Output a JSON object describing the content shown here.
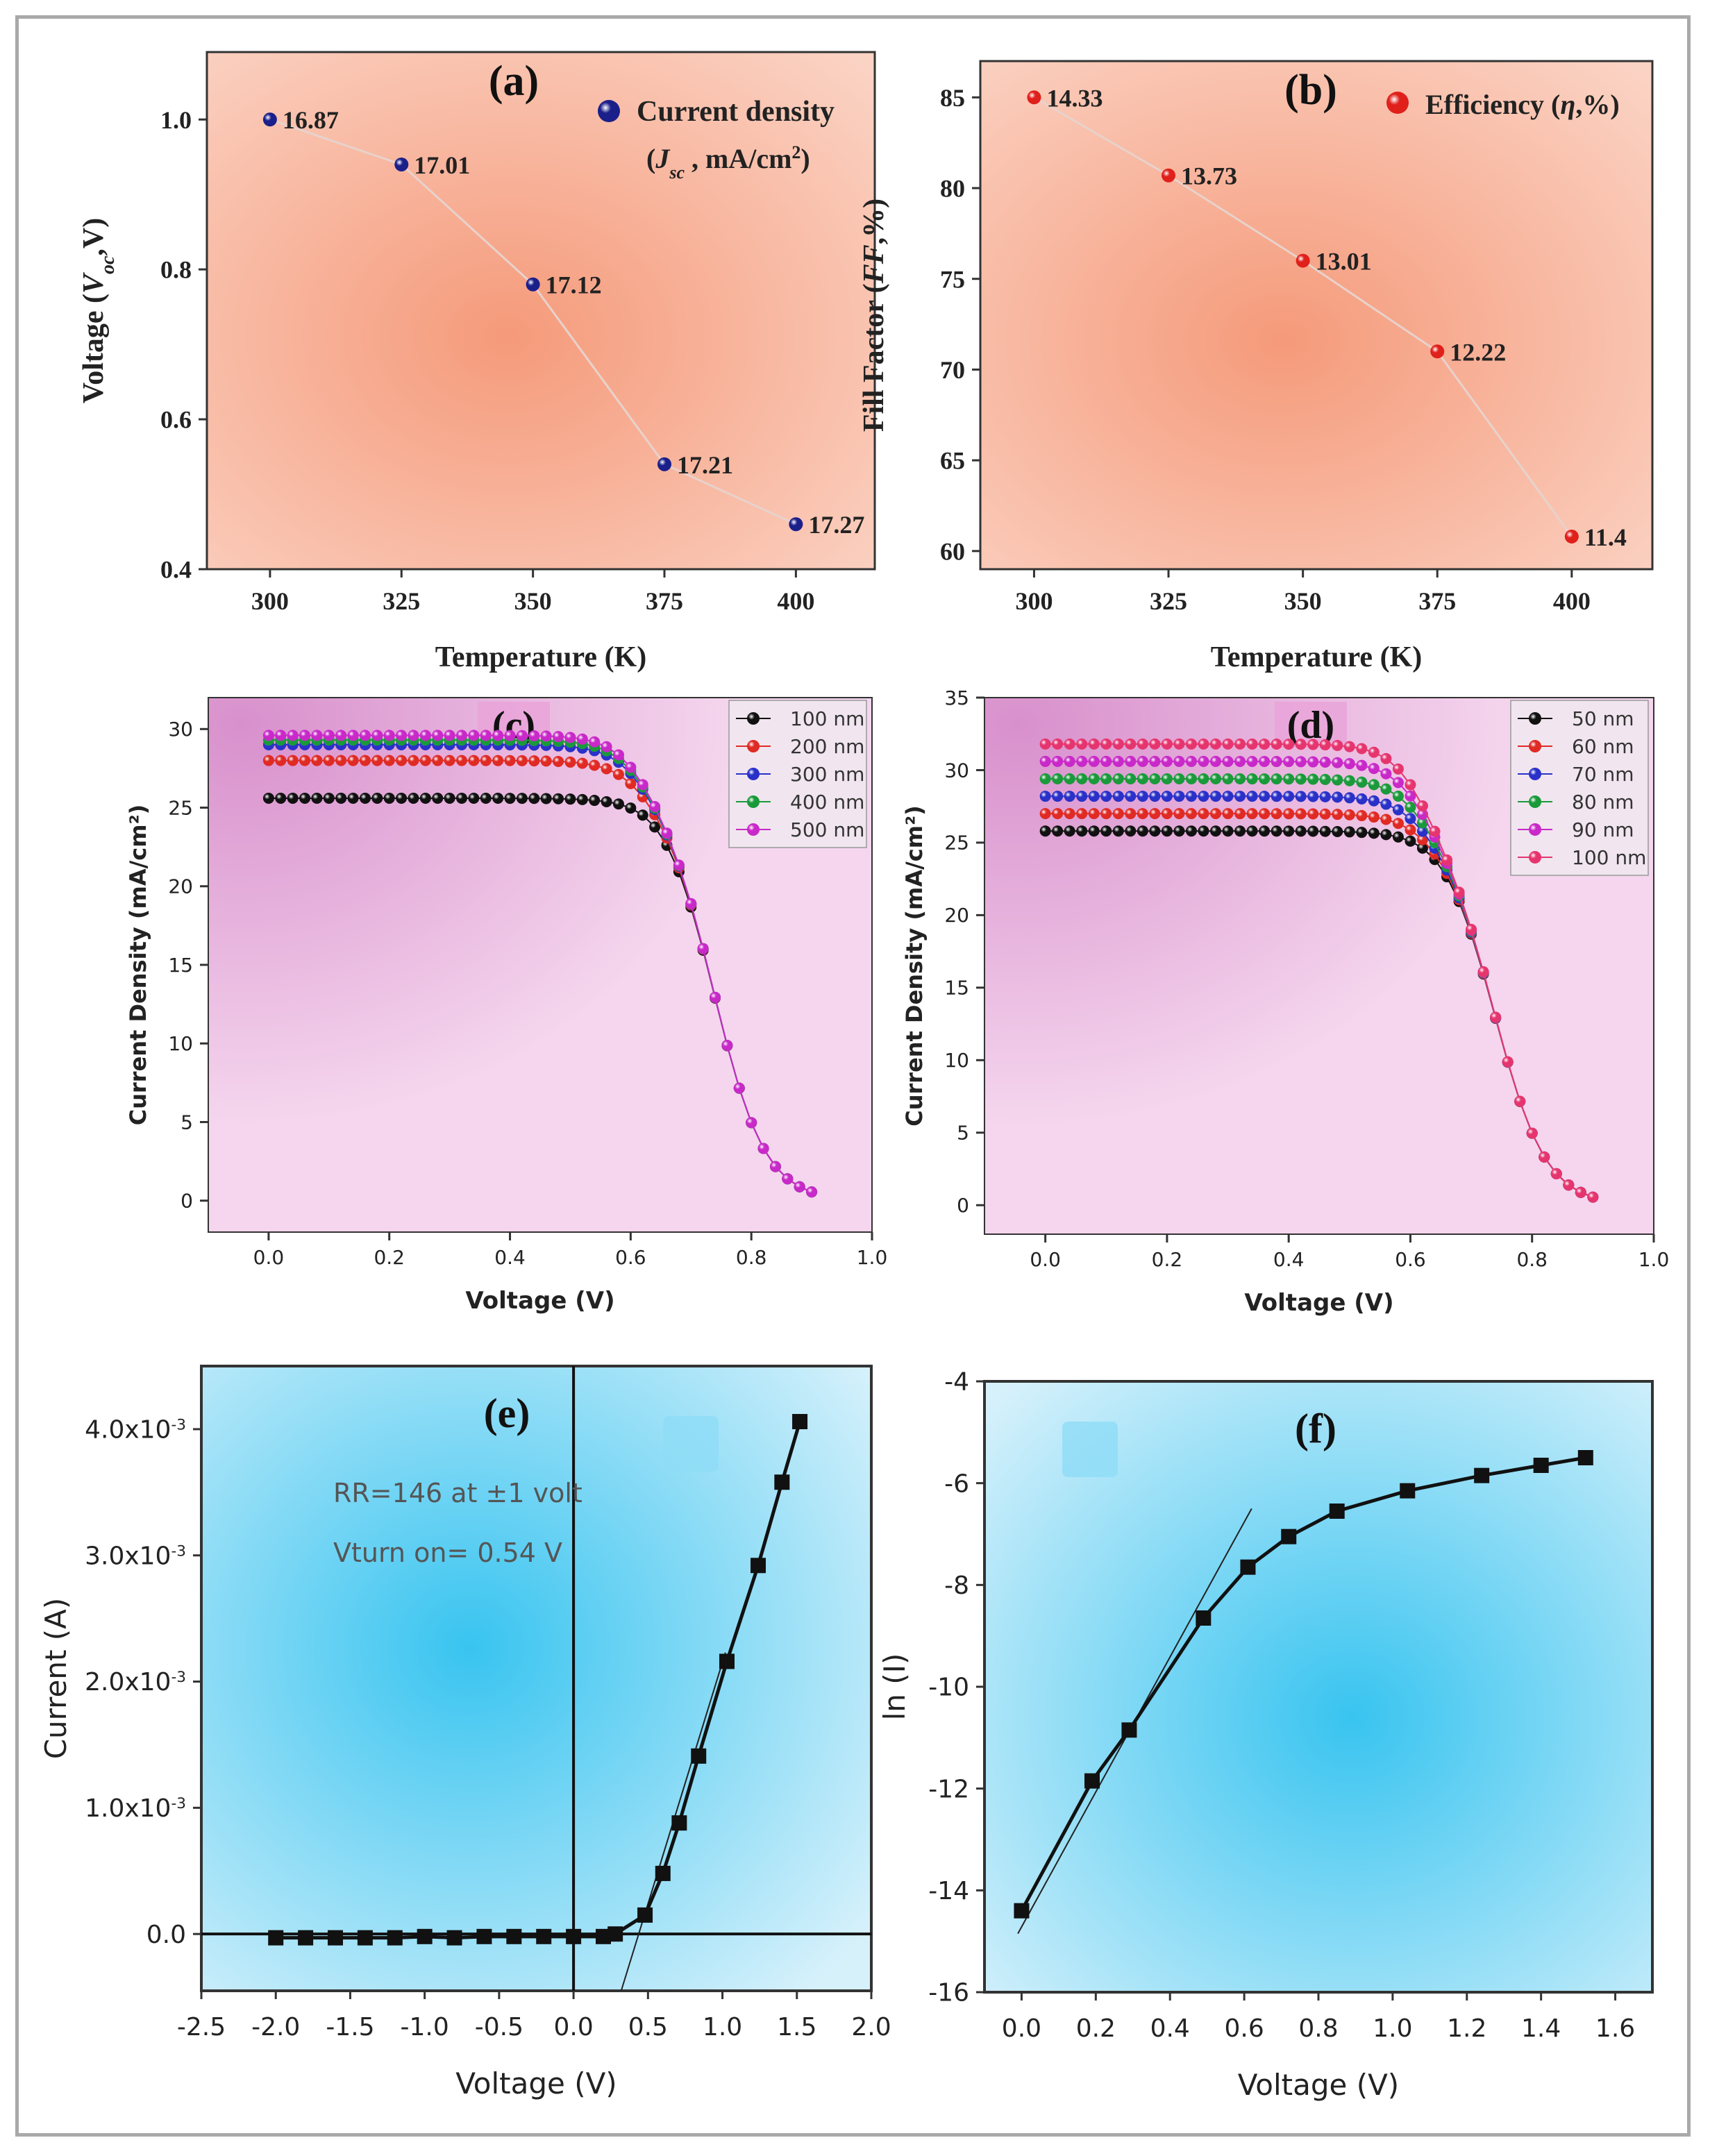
{
  "chart_data": [
    {
      "panel": "(a)",
      "type": "scatter",
      "xlabel": "Temperature (K)",
      "ylabel_parts": [
        "Voltage (",
        "V",
        "oc",
        ",V)"
      ],
      "legend": [
        "Current density",
        "(",
        "J",
        "sc",
        " , mA/cm",
        "2",
        ")"
      ],
      "xlim": [
        288,
        415
      ],
      "ylim": [
        0.4,
        1.09
      ],
      "xticks": [
        300,
        325,
        350,
        375,
        400
      ],
      "yticks": [
        0.4,
        0.6,
        0.8,
        1.0
      ],
      "xtick_labels": [
        "300",
        "325",
        "350",
        "375",
        "400"
      ],
      "ytick_labels": [
        "0.4",
        "0.6",
        "0.8",
        "1.0"
      ],
      "x": [
        300,
        325,
        350,
        375,
        400
      ],
      "y": [
        1.0,
        0.94,
        0.78,
        0.54,
        0.46
      ],
      "point_labels": [
        "16.87",
        "17.01",
        "17.12",
        "17.21",
        "17.27"
      ],
      "marker_color": "#1a1f8a",
      "background": "#f8b9a5"
    },
    {
      "panel": "(b)",
      "type": "scatter",
      "xlabel": "Temperature (K)",
      "ylabel_parts": [
        "Fill Factor (",
        "FF",
        ",%)"
      ],
      "legend": [
        "Efficiency (",
        "η",
        ",%)"
      ],
      "xlim": [
        290,
        415
      ],
      "ylim": [
        59,
        87
      ],
      "xticks": [
        300,
        325,
        350,
        375,
        400
      ],
      "yticks": [
        60,
        65,
        70,
        75,
        80,
        85
      ],
      "xtick_labels": [
        "300",
        "325",
        "350",
        "375",
        "400"
      ],
      "ytick_labels": [
        "60",
        "65",
        "70",
        "75",
        "80",
        "85"
      ],
      "x": [
        300,
        325,
        350,
        375,
        400
      ],
      "y": [
        85,
        80.7,
        76,
        71,
        60.8
      ],
      "point_labels": [
        "14.33",
        "13.73",
        "13.01",
        "12.22",
        "11.4"
      ],
      "marker_color": "#e0201b",
      "background": "#f8b9a5"
    },
    {
      "panel": "(c)",
      "type": "line",
      "xlabel": "Voltage (V)",
      "ylabel": "Current Density (mA/cm²)",
      "xlim": [
        -0.1,
        1.0
      ],
      "ylim": [
        -2,
        32
      ],
      "xticks": [
        0.0,
        0.2,
        0.4,
        0.6,
        0.8,
        1.0
      ],
      "yticks": [
        0,
        5,
        10,
        15,
        20,
        25,
        30
      ],
      "xtick_labels": [
        "0.0",
        "0.2",
        "0.4",
        "0.6",
        "0.8",
        "1.0"
      ],
      "ytick_labels": [
        "0",
        "5",
        "10",
        "15",
        "20",
        "25",
        "30"
      ],
      "series": [
        {
          "name": "100 nm",
          "jsc": 25.6,
          "color": "#111111"
        },
        {
          "name": "200 nm",
          "jsc": 28.0,
          "color": "#e02a24"
        },
        {
          "name": "300 nm",
          "jsc": 29.0,
          "color": "#2a31c8"
        },
        {
          "name": "400 nm",
          "jsc": 29.3,
          "color": "#1a9a3a"
        },
        {
          "name": "500 nm",
          "jsc": 29.6,
          "color": "#c829c8"
        }
      ],
      "v_end": 0.9,
      "background": "#e6b3de"
    },
    {
      "panel": "(d)",
      "type": "line",
      "xlabel": "Voltage (V)",
      "ylabel": "Current Density (mA/cm²)",
      "xlim": [
        -0.1,
        1.0
      ],
      "ylim": [
        -2,
        35
      ],
      "xticks": [
        0.0,
        0.2,
        0.4,
        0.6,
        0.8,
        1.0
      ],
      "yticks": [
        0,
        5,
        10,
        15,
        20,
        25,
        30,
        35
      ],
      "xtick_labels": [
        "0.0",
        "0.2",
        "0.4",
        "0.6",
        "0.8",
        "1.0"
      ],
      "ytick_labels": [
        "0",
        "5",
        "10",
        "15",
        "20",
        "25",
        "30",
        "35"
      ],
      "series": [
        {
          "name": "50 nm",
          "jsc": 25.8,
          "color": "#111111"
        },
        {
          "name": "60 nm",
          "jsc": 27.0,
          "color": "#e02a24"
        },
        {
          "name": "70 nm",
          "jsc": 28.2,
          "color": "#2a31c8"
        },
        {
          "name": "80 nm",
          "jsc": 29.4,
          "color": "#1a9a3a"
        },
        {
          "name": "90 nm",
          "jsc": 30.6,
          "color": "#c829c8"
        },
        {
          "name": "100 nm",
          "jsc": 31.8,
          "color": "#e6356e"
        }
      ],
      "v_end": 0.9,
      "background": "#e6b3de"
    },
    {
      "panel": "(e)",
      "type": "line",
      "xlabel": "Voltage (V)",
      "ylabel": "Current (A)",
      "xlim": [
        -2.5,
        2.0
      ],
      "ylim": [
        -0.00045,
        0.0045
      ],
      "xticks": [
        -2.5,
        -2.0,
        -1.5,
        -1.0,
        -0.5,
        0.0,
        0.5,
        1.0,
        1.5,
        2.0
      ],
      "yticks": [
        0,
        0.001,
        0.002,
        0.003,
        0.004
      ],
      "xtick_labels": [
        "-2.5",
        "-2.0",
        "-1.5",
        "-1.0",
        "-0.5",
        "0.0",
        "0.5",
        "1.0",
        "1.5",
        "2.0"
      ],
      "ytick_labels": [
        [
          "0.0",
          ""
        ],
        [
          "1.0x10",
          "-3"
        ],
        [
          "2.0x10",
          "-3"
        ],
        [
          "3.0x10",
          "-3"
        ],
        [
          "4.0x10",
          "-3"
        ]
      ],
      "annotations": [
        "RR=146 at ±1 volt",
        "Vturn on= 0.54 V"
      ],
      "x": [
        -2.0,
        -1.8,
        -1.6,
        -1.4,
        -1.2,
        -1.0,
        -0.8,
        -0.6,
        -0.4,
        -0.2,
        0.0,
        0.2,
        0.28,
        0.48,
        0.6,
        0.71,
        0.84,
        1.03,
        1.24,
        1.4,
        1.52
      ],
      "y": [
        -3e-05,
        -3e-05,
        -3e-05,
        -3e-05,
        -3e-05,
        -2e-05,
        -3e-05,
        -2e-05,
        -2e-05,
        -2e-05,
        -2e-05,
        -2e-05,
        0.0,
        0.00015,
        0.00048,
        0.00088,
        0.00141,
        0.00216,
        0.00292,
        0.00358,
        0.00406
      ],
      "tangent_x": [
        0.32,
        1.02
      ],
      "tangent_y": [
        -0.00045,
        0.00223
      ],
      "background": "#7fd3f2"
    },
    {
      "panel": "(f)",
      "type": "line",
      "xlabel": "Voltage (V)",
      "ylabel": "ln (I)",
      "xlim": [
        -0.1,
        1.7
      ],
      "ylim": [
        -16,
        -4
      ],
      "xticks": [
        0.0,
        0.2,
        0.4,
        0.6,
        0.8,
        1.0,
        1.2,
        1.4,
        1.6
      ],
      "yticks": [
        -16,
        -14,
        -12,
        -10,
        -8,
        -6,
        -4
      ],
      "xtick_labels": [
        "0.0",
        "0.2",
        "0.4",
        "0.6",
        "0.8",
        "1.0",
        "1.2",
        "1.4",
        "1.6"
      ],
      "ytick_labels": [
        "-16",
        "-14",
        "-12",
        "-10",
        "-8",
        "-6",
        "-4"
      ],
      "x": [
        0.0,
        0.19,
        0.29,
        0.49,
        0.61,
        0.72,
        0.85,
        1.04,
        1.24,
        1.4,
        1.52
      ],
      "y": [
        -14.4,
        -11.85,
        -10.85,
        -8.65,
        -7.65,
        -7.05,
        -6.55,
        -6.15,
        -5.85,
        -5.65,
        -5.5
      ],
      "tangent_x": [
        -0.01,
        0.62
      ],
      "tangent_y": [
        -14.85,
        -6.5
      ],
      "background": "#7fd3f2"
    }
  ]
}
